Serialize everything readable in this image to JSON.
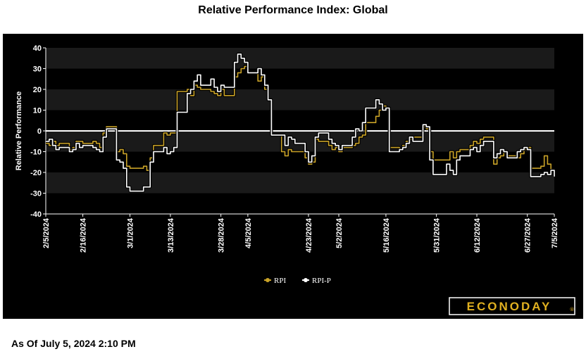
{
  "page_title": "Relative Performance Index: Global",
  "as_of_text": "As Of July 5, 2024 2:10 PM",
  "logo_text": "ECONODAY",
  "colors": {
    "background": "#000000",
    "band": "#1a1a1a",
    "rpi": "#c9a227",
    "rpi_p": "#ffffff",
    "logo_text": "#e0b020"
  },
  "chart_data": {
    "type": "line",
    "title": "Relative Performance Index: Global",
    "ylabel": "Relative Performance",
    "xlabel": "",
    "ylim": [
      -40,
      40
    ],
    "yticks": [
      40,
      30,
      20,
      10,
      0,
      -10,
      -20,
      -30,
      -40
    ],
    "xlim": [
      "2024-02-05",
      "2024-07-05"
    ],
    "xticks": [
      {
        "date": "2024-02-05",
        "label": "2/5/2024"
      },
      {
        "date": "2024-02-16",
        "label": "2/16/2024"
      },
      {
        "date": "2024-03-01",
        "label": "3/1/2024"
      },
      {
        "date": "2024-03-13",
        "label": "3/13/2024"
      },
      {
        "date": "2024-03-28",
        "label": "3/28/2024"
      },
      {
        "date": "2024-04-05",
        "label": "4/5/2024"
      },
      {
        "date": "2024-04-23",
        "label": "4/23/2024"
      },
      {
        "date": "2024-05-02",
        "label": "5/2/2024"
      },
      {
        "date": "2024-05-16",
        "label": "5/16/2024"
      },
      {
        "date": "2024-05-31",
        "label": "5/31/2024"
      },
      {
        "date": "2024-06-12",
        "label": "6/12/2024"
      },
      {
        "date": "2024-06-27",
        "label": "6/27/2024"
      },
      {
        "date": "2024-07-05",
        "label": "7/5/2024"
      }
    ],
    "grid": "alternating horizontal bands",
    "zero_line": true,
    "legend": {
      "placement": "bottom-center",
      "entries": [
        "RPI",
        "RPI-P"
      ]
    },
    "series": [
      {
        "name": "RPI",
        "color": "#c9a227",
        "points": [
          [
            "2024-02-05",
            -6
          ],
          [
            "2024-02-06",
            -7
          ],
          [
            "2024-02-07",
            -5
          ],
          [
            "2024-02-08",
            -7
          ],
          [
            "2024-02-09",
            -6
          ],
          [
            "2024-02-12",
            -9
          ],
          [
            "2024-02-13",
            -8
          ],
          [
            "2024-02-14",
            -5
          ],
          [
            "2024-02-15",
            -5
          ],
          [
            "2024-02-16",
            -6
          ],
          [
            "2024-02-19",
            -5
          ],
          [
            "2024-02-20",
            -6
          ],
          [
            "2024-02-21",
            -8
          ],
          [
            "2024-02-22",
            -1
          ],
          [
            "2024-02-23",
            2
          ],
          [
            "2024-02-26",
            -10
          ],
          [
            "2024-02-27",
            -9
          ],
          [
            "2024-02-28",
            -11
          ],
          [
            "2024-02-29",
            -17
          ],
          [
            "2024-03-01",
            -18
          ],
          [
            "2024-03-04",
            -18
          ],
          [
            "2024-03-05",
            -17
          ],
          [
            "2024-03-06",
            -19
          ],
          [
            "2024-03-07",
            -13
          ],
          [
            "2024-03-08",
            -7
          ],
          [
            "2024-03-11",
            -1
          ],
          [
            "2024-03-12",
            -2
          ],
          [
            "2024-03-13",
            -1
          ],
          [
            "2024-03-14",
            -1
          ],
          [
            "2024-03-15",
            19
          ],
          [
            "2024-03-18",
            20
          ],
          [
            "2024-03-19",
            17
          ],
          [
            "2024-03-20",
            22
          ],
          [
            "2024-03-21",
            21
          ],
          [
            "2024-03-22",
            20
          ],
          [
            "2024-03-25",
            19
          ],
          [
            "2024-03-26",
            18
          ],
          [
            "2024-03-27",
            17
          ],
          [
            "2024-03-28",
            20
          ],
          [
            "2024-03-29",
            17
          ],
          [
            "2024-04-01",
            26
          ],
          [
            "2024-04-02",
            28
          ],
          [
            "2024-04-03",
            30
          ],
          [
            "2024-04-04",
            31
          ],
          [
            "2024-04-05",
            28
          ],
          [
            "2024-04-08",
            24
          ],
          [
            "2024-04-09",
            26
          ],
          [
            "2024-04-10",
            20
          ],
          [
            "2024-04-11",
            15
          ],
          [
            "2024-04-12",
            -2
          ],
          [
            "2024-04-15",
            -10
          ],
          [
            "2024-04-16",
            -12
          ],
          [
            "2024-04-17",
            -9
          ],
          [
            "2024-04-18",
            -10
          ],
          [
            "2024-04-19",
            -10
          ],
          [
            "2024-04-22",
            -13
          ],
          [
            "2024-04-23",
            -16
          ],
          [
            "2024-04-24",
            -15
          ],
          [
            "2024-04-25",
            -4
          ],
          [
            "2024-04-26",
            -5
          ],
          [
            "2024-04-29",
            -7
          ],
          [
            "2024-04-30",
            -9
          ],
          [
            "2024-05-01",
            -8
          ],
          [
            "2024-05-02",
            -10
          ],
          [
            "2024-05-03",
            -8
          ],
          [
            "2024-05-06",
            -7
          ],
          [
            "2024-05-07",
            -6
          ],
          [
            "2024-05-08",
            -3
          ],
          [
            "2024-05-09",
            -2
          ],
          [
            "2024-05-10",
            4
          ],
          [
            "2024-05-13",
            7
          ],
          [
            "2024-05-14",
            10
          ],
          [
            "2024-05-15",
            12
          ],
          [
            "2024-05-16",
            11
          ],
          [
            "2024-05-17",
            -8
          ],
          [
            "2024-05-20",
            -9
          ],
          [
            "2024-05-21",
            -7
          ],
          [
            "2024-05-22",
            -5
          ],
          [
            "2024-05-23",
            -4
          ],
          [
            "2024-05-24",
            -3
          ],
          [
            "2024-05-27",
            2
          ],
          [
            "2024-05-28",
            1
          ],
          [
            "2024-05-29",
            -10
          ],
          [
            "2024-05-30",
            -14
          ],
          [
            "2024-05-31",
            -14
          ],
          [
            "2024-06-03",
            -14
          ],
          [
            "2024-06-04",
            -10
          ],
          [
            "2024-06-05",
            -13
          ],
          [
            "2024-06-06",
            -10
          ],
          [
            "2024-06-07",
            -9
          ],
          [
            "2024-06-10",
            -7
          ],
          [
            "2024-06-11",
            -5
          ],
          [
            "2024-06-12",
            -6
          ],
          [
            "2024-06-13",
            -4
          ],
          [
            "2024-06-14",
            -3
          ],
          [
            "2024-06-17",
            -16
          ],
          [
            "2024-06-18",
            -13
          ],
          [
            "2024-06-19",
            -12
          ],
          [
            "2024-06-20",
            -10
          ],
          [
            "2024-06-21",
            -12
          ],
          [
            "2024-06-24",
            -13
          ],
          [
            "2024-06-25",
            -11
          ],
          [
            "2024-06-26",
            -9
          ],
          [
            "2024-06-27",
            -8
          ],
          [
            "2024-06-28",
            -18
          ],
          [
            "2024-07-01",
            -17
          ],
          [
            "2024-07-02",
            -12
          ],
          [
            "2024-07-03",
            -16
          ],
          [
            "2024-07-04",
            -19
          ],
          [
            "2024-07-05",
            -19
          ]
        ]
      },
      {
        "name": "RPI-P",
        "color": "#ffffff",
        "points": [
          [
            "2024-02-05",
            -5
          ],
          [
            "2024-02-06",
            -4
          ],
          [
            "2024-02-07",
            -7
          ],
          [
            "2024-02-08",
            -9
          ],
          [
            "2024-02-09",
            -8
          ],
          [
            "2024-02-12",
            -10
          ],
          [
            "2024-02-13",
            -9
          ],
          [
            "2024-02-14",
            -6
          ],
          [
            "2024-02-15",
            -8
          ],
          [
            "2024-02-16",
            -7
          ],
          [
            "2024-02-19",
            -8
          ],
          [
            "2024-02-20",
            -9
          ],
          [
            "2024-02-21",
            -10
          ],
          [
            "2024-02-22",
            -3
          ],
          [
            "2024-02-23",
            1
          ],
          [
            "2024-02-26",
            -14
          ],
          [
            "2024-02-27",
            -15
          ],
          [
            "2024-02-28",
            -18
          ],
          [
            "2024-02-29",
            -27
          ],
          [
            "2024-03-01",
            -29
          ],
          [
            "2024-03-04",
            -29
          ],
          [
            "2024-03-05",
            -27
          ],
          [
            "2024-03-06",
            -27
          ],
          [
            "2024-03-07",
            -15
          ],
          [
            "2024-03-08",
            -10
          ],
          [
            "2024-03-11",
            -8
          ],
          [
            "2024-03-12",
            -11
          ],
          [
            "2024-03-13",
            -10
          ],
          [
            "2024-03-14",
            -8
          ],
          [
            "2024-03-15",
            9
          ],
          [
            "2024-03-18",
            18
          ],
          [
            "2024-03-19",
            20
          ],
          [
            "2024-03-20",
            24
          ],
          [
            "2024-03-21",
            27
          ],
          [
            "2024-03-22",
            22
          ],
          [
            "2024-03-25",
            25
          ],
          [
            "2024-03-26",
            21
          ],
          [
            "2024-03-27",
            19
          ],
          [
            "2024-03-28",
            22
          ],
          [
            "2024-03-29",
            21
          ],
          [
            "2024-04-01",
            33
          ],
          [
            "2024-04-02",
            37
          ],
          [
            "2024-04-03",
            35
          ],
          [
            "2024-04-04",
            33
          ],
          [
            "2024-04-05",
            28
          ],
          [
            "2024-04-08",
            30
          ],
          [
            "2024-04-09",
            27
          ],
          [
            "2024-04-10",
            22
          ],
          [
            "2024-04-11",
            15
          ],
          [
            "2024-04-12",
            -2
          ],
          [
            "2024-04-15",
            -2
          ],
          [
            "2024-04-16",
            -7
          ],
          [
            "2024-04-17",
            -3
          ],
          [
            "2024-04-18",
            -4
          ],
          [
            "2024-04-19",
            -6
          ],
          [
            "2024-04-22",
            -10
          ],
          [
            "2024-04-23",
            -15
          ],
          [
            "2024-04-24",
            -12
          ],
          [
            "2024-04-25",
            -3
          ],
          [
            "2024-04-26",
            -1
          ],
          [
            "2024-04-29",
            -4
          ],
          [
            "2024-04-30",
            -6
          ],
          [
            "2024-05-01",
            -7
          ],
          [
            "2024-05-02",
            -9
          ],
          [
            "2024-05-03",
            -7
          ],
          [
            "2024-05-06",
            -3
          ],
          [
            "2024-05-07",
            1
          ],
          [
            "2024-05-08",
            0
          ],
          [
            "2024-05-09",
            4
          ],
          [
            "2024-05-10",
            11
          ],
          [
            "2024-05-13",
            15
          ],
          [
            "2024-05-14",
            13
          ],
          [
            "2024-05-15",
            10
          ],
          [
            "2024-05-16",
            11
          ],
          [
            "2024-05-17",
            -10
          ],
          [
            "2024-05-20",
            -9
          ],
          [
            "2024-05-21",
            -8
          ],
          [
            "2024-05-22",
            -6
          ],
          [
            "2024-05-23",
            -3
          ],
          [
            "2024-05-24",
            -5
          ],
          [
            "2024-05-27",
            3
          ],
          [
            "2024-05-28",
            2
          ],
          [
            "2024-05-29",
            -14
          ],
          [
            "2024-05-30",
            -21
          ],
          [
            "2024-05-31",
            -21
          ],
          [
            "2024-06-03",
            -16
          ],
          [
            "2024-06-04",
            -19
          ],
          [
            "2024-06-05",
            -21
          ],
          [
            "2024-06-06",
            -14
          ],
          [
            "2024-06-07",
            -12
          ],
          [
            "2024-06-10",
            -9
          ],
          [
            "2024-06-11",
            -8
          ],
          [
            "2024-06-12",
            -10
          ],
          [
            "2024-06-13",
            -7
          ],
          [
            "2024-06-14",
            -5
          ],
          [
            "2024-06-17",
            -13
          ],
          [
            "2024-06-18",
            -11
          ],
          [
            "2024-06-19",
            -9
          ],
          [
            "2024-06-20",
            -10
          ],
          [
            "2024-06-21",
            -13
          ],
          [
            "2024-06-24",
            -10
          ],
          [
            "2024-06-25",
            -9
          ],
          [
            "2024-06-26",
            -8
          ],
          [
            "2024-06-27",
            -9
          ],
          [
            "2024-06-28",
            -22
          ],
          [
            "2024-07-01",
            -21
          ],
          [
            "2024-07-02",
            -20
          ],
          [
            "2024-07-03",
            -21
          ],
          [
            "2024-07-04",
            -19
          ],
          [
            "2024-07-05",
            -22
          ]
        ]
      }
    ]
  }
}
